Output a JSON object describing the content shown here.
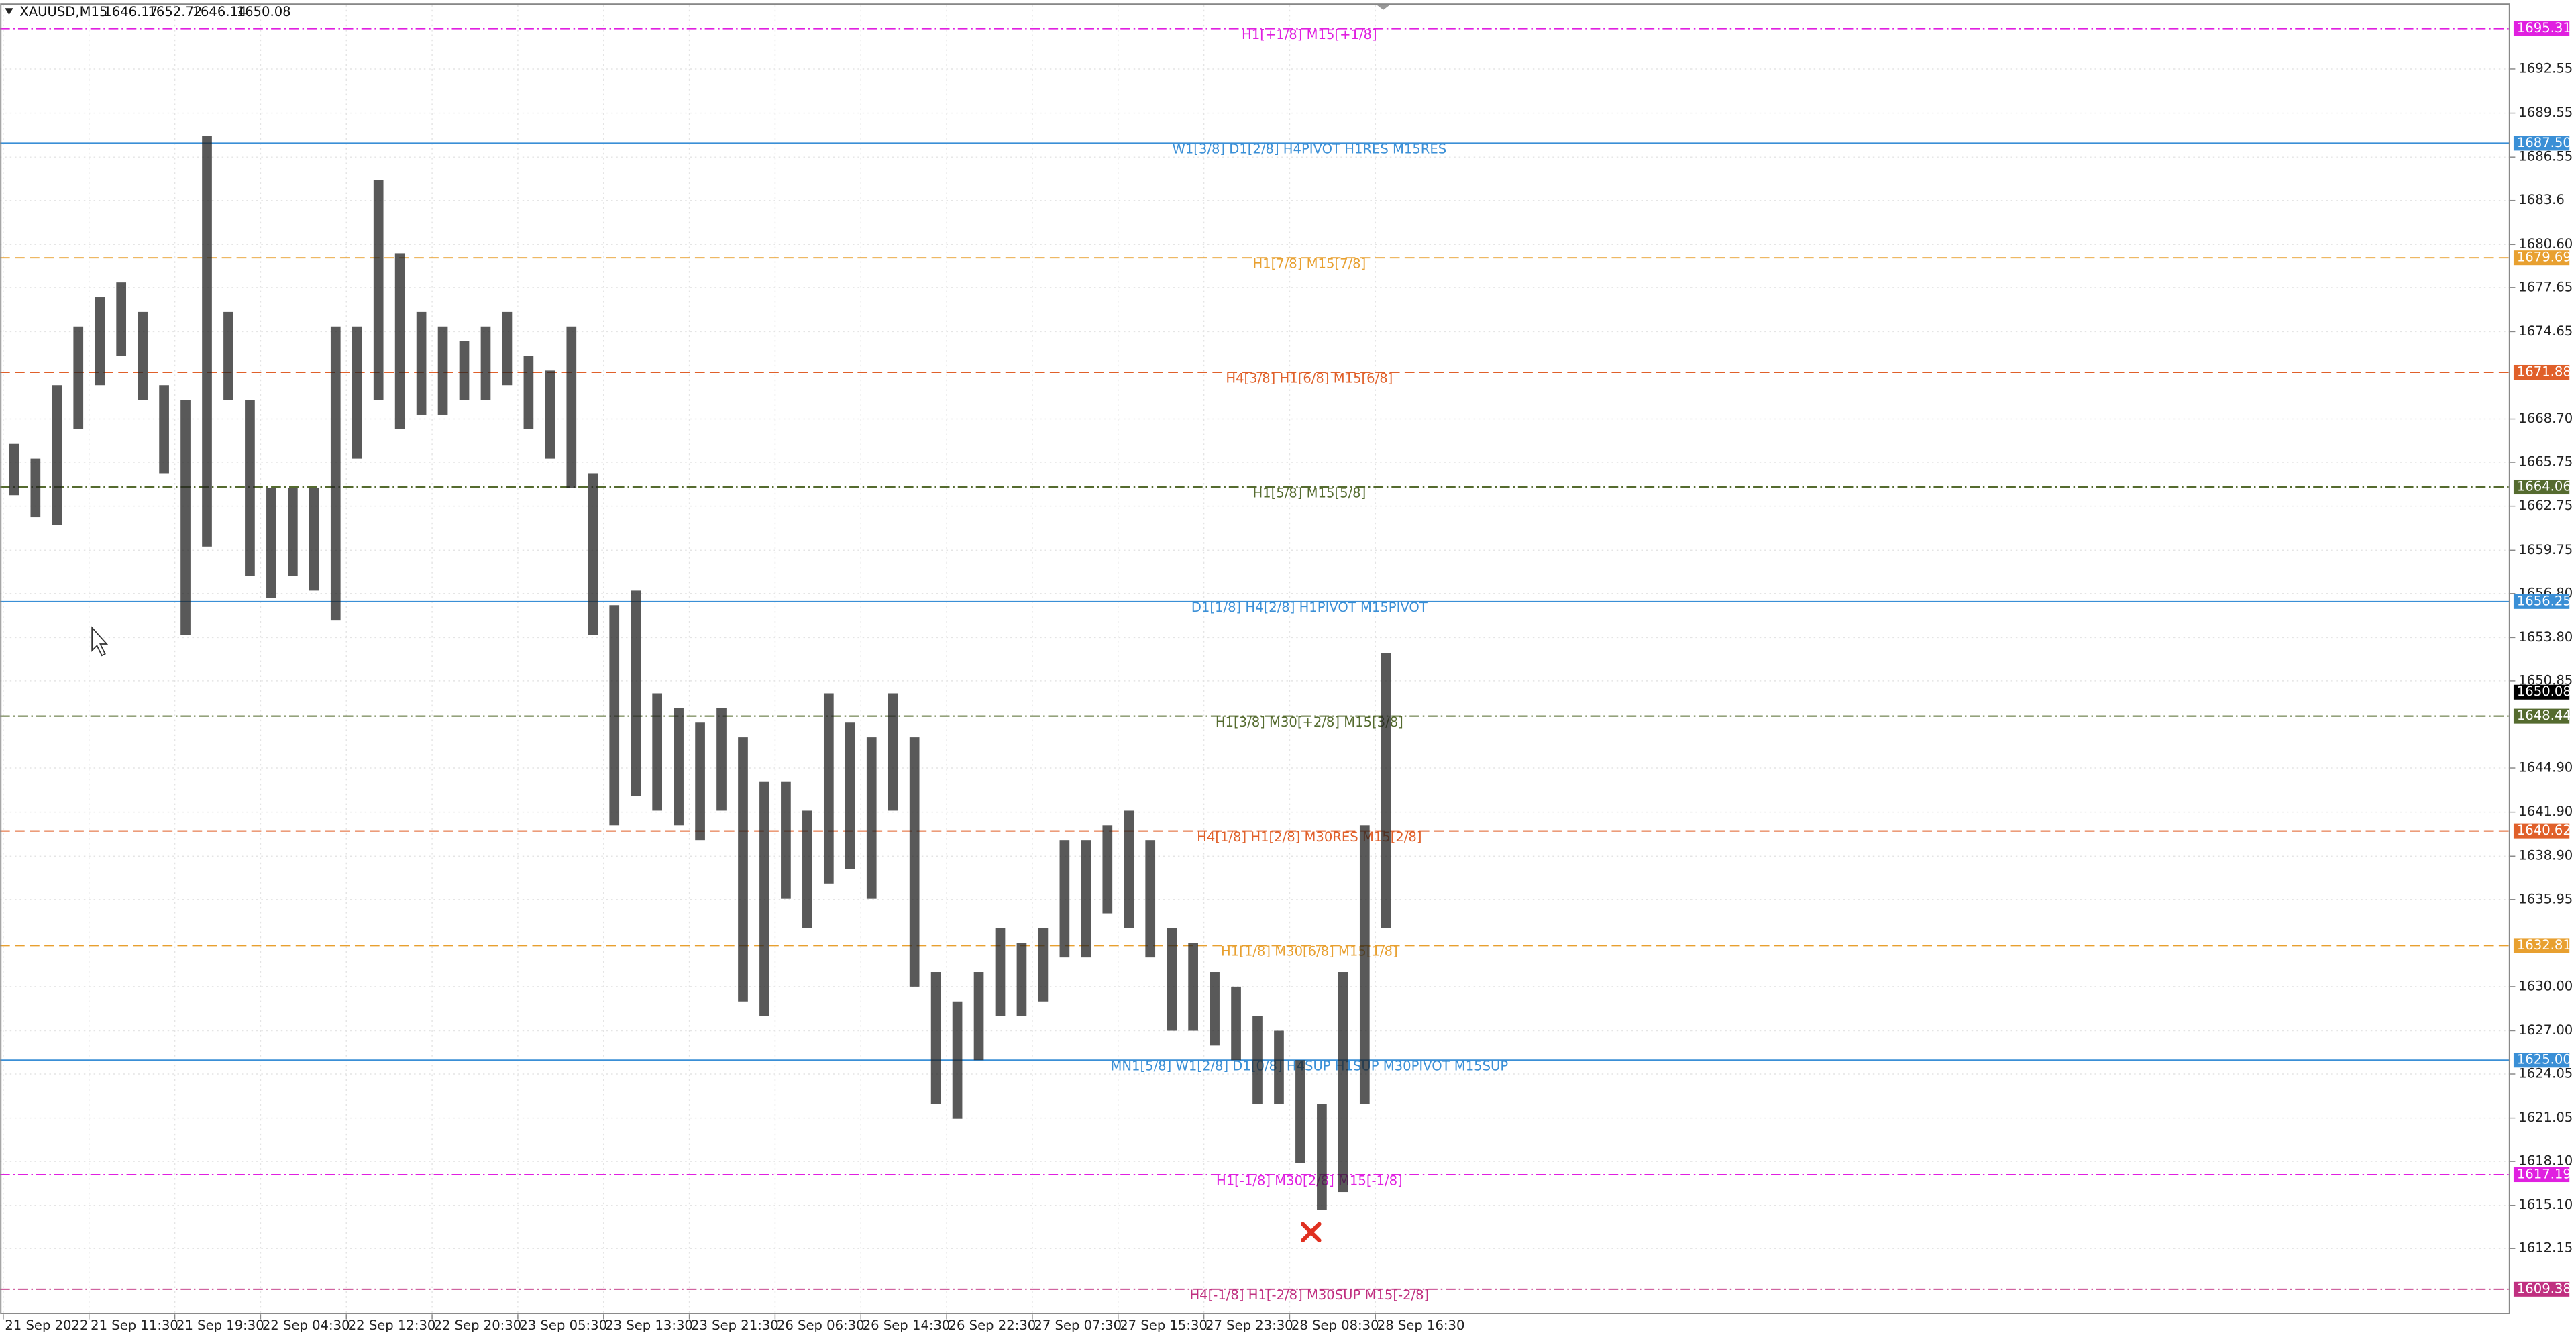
{
  "chart_data": {
    "type": "range-bar",
    "symbol": "XAUUSD,M15",
    "ohlc": [
      1646.17,
      1652.72,
      1646.14,
      1650.08
    ],
    "current_price": 1650.08,
    "categories": [
      "21 Sep 2022",
      null,
      null,
      null,
      "21 Sep 11:30",
      null,
      null,
      null,
      "21 Sep 19:30",
      null,
      null,
      null,
      "22 Sep 04:30",
      null,
      null,
      null,
      "22 Sep 12:30",
      null,
      null,
      null,
      "22 Sep 20:30",
      null,
      null,
      null,
      "23 Sep 05:30",
      null,
      null,
      null,
      "23 Sep 13:30",
      null,
      null,
      null,
      "23 Sep 21:30",
      null,
      null,
      null,
      "26 Sep 06:30",
      null,
      null,
      null,
      "26 Sep 14:30",
      null,
      null,
      null,
      "26 Sep 22:30",
      null,
      null,
      null,
      "27 Sep 07:30",
      null,
      null,
      null,
      "27 Sep 15:30",
      null,
      null,
      null,
      "27 Sep 23:30",
      null,
      null,
      null,
      "28 Sep 08:30",
      null,
      null,
      null,
      "28 Sep 16:30"
    ],
    "highs": [
      1667,
      1666,
      1671,
      1675,
      1677,
      1678,
      1676,
      1671,
      1670,
      1688,
      1676,
      1670,
      1664,
      1664,
      1664,
      1675,
      1675,
      1685,
      1680,
      1676,
      1675,
      1674,
      1675,
      1676,
      1673,
      1672,
      1675,
      1665,
      1656,
      1657,
      1650,
      1649,
      1648,
      1649,
      1647,
      1644,
      1644,
      1642,
      1650,
      1648,
      1647,
      1650,
      1647,
      1631,
      1629,
      1631,
      1634,
      1633,
      1634,
      1640,
      1640,
      1641,
      1642,
      1640,
      1634,
      1633,
      1631,
      1630,
      1628,
      1627,
      1625,
      1622,
      1631,
      1641,
      1652.72
    ],
    "lows": [
      1663.5,
      1662,
      1661.5,
      1668,
      1671,
      1673,
      1670,
      1665,
      1654,
      1660,
      1670,
      1658,
      1656.5,
      1658,
      1657,
      1655,
      1666,
      1670,
      1668,
      1669,
      1669,
      1670,
      1670,
      1671,
      1668,
      1666,
      1664,
      1654,
      1641,
      1643,
      1642,
      1641,
      1640,
      1642,
      1629,
      1628,
      1636,
      1634,
      1637,
      1638,
      1636,
      1642,
      1630,
      1622,
      1621,
      1625,
      1628,
      1628,
      1629,
      1632,
      1632,
      1635,
      1634,
      1632,
      1627,
      1627,
      1626,
      1625,
      1622,
      1622,
      1618,
      1614.8,
      1616,
      1622,
      1634
    ],
    "color": "#222222",
    "ylim": [
      1607.67,
      1696.92
    ],
    "yticks": [
      1692.55,
      1689.55,
      1686.55,
      1683.6,
      {
        "value": 1680.6,
        "label": "1680.60"
      },
      1677.65,
      1674.65,
      {
        "value": 1668.7,
        "label": "1668.70"
      },
      1665.75,
      1662.75,
      1659.75,
      {
        "value": 1656.8,
        "label": "1656.80"
      },
      {
        "value": 1653.8,
        "label": "1653.80"
      },
      1650.85,
      {
        "value": 1644.9,
        "label": "1644.90"
      },
      {
        "value": 1641.9,
        "label": "1641.90"
      },
      {
        "value": 1638.9,
        "label": "1638.90"
      },
      1635.95,
      {
        "value": 1630,
        "label": "1630.00"
      },
      {
        "value": 1627,
        "label": "1627.00"
      },
      1624.05,
      1621.05,
      {
        "value": 1618.1,
        "label": "1618.10"
      },
      {
        "value": 1615.1,
        "label": "1615.10"
      },
      1612.15
    ],
    "grid": true,
    "levels": [
      {
        "text": "H1[+1/8] M15[+1/8]",
        "price": 1695.31,
        "color": "#e020e0",
        "style": "dashdot"
      },
      {
        "text": "W1[3/8] D1[2/8] H4PIVOT H1RES M15RES",
        "price": {
          "value": 1687.5,
          "label": "1687.50"
        },
        "color": "#3a8fd6",
        "style": "solid"
      },
      {
        "text": "H1[7/8] M15[7/8]",
        "price": 1679.69,
        "color": "#e8a030",
        "style": "dash"
      },
      {
        "text": "H4[3/8] H1[6/8] M15[6/8]",
        "price": 1671.88,
        "color": "#e0602a",
        "style": "dash"
      },
      {
        "text": "H1[5/8] M15[5/8]",
        "price": 1664.06,
        "color": "#556b2f",
        "style": "dashdot"
      },
      {
        "text": "D1[1/8] H4[2/8] H1PIVOT M15PIVOT",
        "price": 1656.25,
        "color": "#3a8fd6",
        "style": "solid"
      },
      {
        "text": "H1[3/8] M30[+2/8] M15[3/8]",
        "price": 1648.44,
        "color": "#556b2f",
        "style": "dashdot"
      },
      {
        "text": "H4[1/8] H1[2/8] M30RES M15[2/8]",
        "price": 1640.62,
        "color": "#e0602a",
        "style": "dash"
      },
      {
        "text": "H1[1/8] M30[6/8] M15[1/8]",
        "price": 1632.81,
        "color": "#e8a030",
        "style": "dash"
      },
      {
        "text": "MN1[5/8] W1[2/8] D1[0/8] H4SUP H1SUP M30PIVOT M15SUP",
        "price": {
          "value": 1625,
          "label": "1625.00"
        },
        "color": "#3a8fd6",
        "style": "solid"
      },
      {
        "text": "H1[-1/8] M30[2/8] M15[-1/8]",
        "price": 1617.19,
        "color": "#e020e0",
        "style": "dashdot"
      },
      {
        "text": "H4[-1/8] H1[-2/8] M30SUP M15[-2/8]",
        "price": 1609.38,
        "color": "#c03080",
        "style": "dashdot"
      }
    ]
  }
}
